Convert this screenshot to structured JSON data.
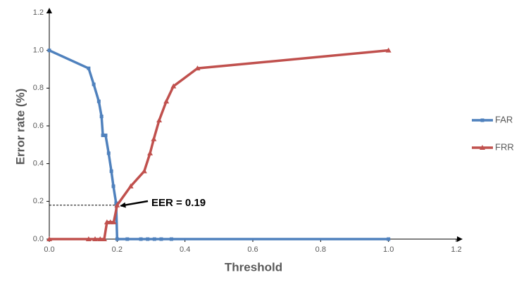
{
  "chart_data": {
    "type": "line",
    "xlabel": "Threshold",
    "ylabel": "Error rate (%)",
    "xlim": [
      0,
      1.2
    ],
    "ylim": [
      0,
      1.2
    ],
    "xticks": [
      {
        "value": 0,
        "label": "0.0"
      },
      {
        "value": 0.2,
        "label": "0.2"
      },
      {
        "value": 0.4,
        "label": "0.4"
      },
      {
        "value": 0.6,
        "label": "0.6"
      },
      {
        "value": 0.8,
        "label": "0.8"
      },
      {
        "value": 1,
        "label": "1.0"
      },
      {
        "value": 1.2,
        "label": "1.2"
      }
    ],
    "yticks": [
      {
        "value": 0,
        "label": "0.0"
      },
      {
        "value": 0.2,
        "label": "0.2"
      },
      {
        "value": 0.4,
        "label": "0.4"
      },
      {
        "value": 0.6,
        "label": "0.6"
      },
      {
        "value": 0.8,
        "label": "0.8"
      },
      {
        "value": 1,
        "label": "1.0"
      },
      {
        "value": 1.2,
        "label": "1.2"
      }
    ],
    "legend": "right",
    "annotation": "EER = 0.19",
    "series": [
      {
        "name": "FAR",
        "color": "#4f81bd",
        "marker": "square",
        "x": [
          0,
          0.116,
          0.131,
          0.146,
          0.154,
          0.158,
          0.166,
          0.175,
          0.183,
          0.189,
          0.197,
          0.2,
          0.23,
          0.27,
          0.29,
          0.31,
          0.33,
          0.36,
          1.0
        ],
        "values": [
          1.0,
          0.905,
          0.82,
          0.73,
          0.65,
          0.55,
          0.55,
          0.455,
          0.36,
          0.28,
          0.19,
          0,
          0,
          0,
          0,
          0,
          0,
          0,
          0
        ]
      },
      {
        "name": "FRR",
        "color": "#c0504d",
        "marker": "triangle",
        "x": [
          0,
          0.116,
          0.135,
          0.15,
          0.162,
          0.17,
          0.18,
          0.19,
          0.2,
          0.24,
          0.28,
          0.297,
          0.308,
          0.324,
          0.345,
          0.366,
          0.437,
          1.0
        ],
        "values": [
          0,
          0,
          0,
          0,
          0,
          0.09,
          0.09,
          0.09,
          0.18,
          0.28,
          0.36,
          0.455,
          0.53,
          0.63,
          0.73,
          0.81,
          0.905,
          1.0
        ]
      }
    ]
  }
}
